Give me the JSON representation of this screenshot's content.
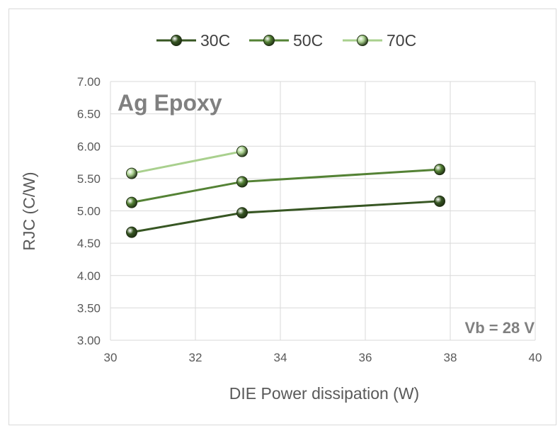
{
  "chart_data": {
    "type": "line",
    "xlabel": "DIE Power dissipation (W)",
    "ylabel": "RJC (C/W)",
    "xlim": [
      30,
      40
    ],
    "ylim": [
      3.0,
      7.0
    ],
    "x_ticks": [
      "30",
      "32",
      "34",
      "36",
      "38",
      "40"
    ],
    "y_ticks": [
      "7.00",
      "6.50",
      "6.00",
      "5.50",
      "5.00",
      "4.50",
      "4.00",
      "3.50",
      "3.00"
    ],
    "grid": true,
    "legend_position": "top",
    "series": [
      {
        "name": "30C",
        "color": "#375623",
        "points": [
          [
            30.5,
            4.67
          ],
          [
            33.1,
            4.97
          ],
          [
            37.75,
            5.15
          ]
        ]
      },
      {
        "name": "50C",
        "color": "#548235",
        "points": [
          [
            30.5,
            5.13
          ],
          [
            33.1,
            5.45
          ],
          [
            37.75,
            5.64
          ]
        ]
      },
      {
        "name": "70C",
        "color": "#a9d08e",
        "points": [
          [
            30.5,
            5.58
          ],
          [
            33.1,
            5.92
          ]
        ]
      }
    ],
    "annotations": {
      "material": "Ag Epoxy",
      "bias": "Vb = 28 V"
    }
  }
}
